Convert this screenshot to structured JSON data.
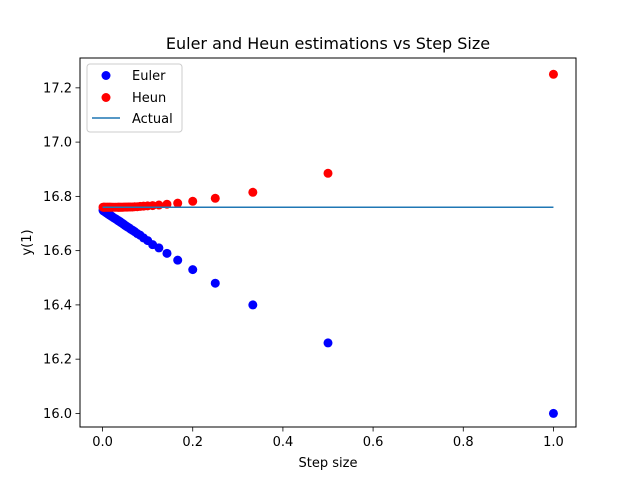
{
  "chart_data": {
    "type": "scatter",
    "title": "Euler and Heun estimations vs Step Size",
    "xlabel": "Step size",
    "ylabel": "y(1)",
    "xlim": [
      -0.05,
      1.05
    ],
    "ylim": [
      15.95,
      17.31
    ],
    "xticks": [
      "0.0",
      "0.2",
      "0.4",
      "0.6",
      "0.8",
      "1.0"
    ],
    "xtick_values": [
      0.0,
      0.2,
      0.4,
      0.6,
      0.8,
      1.0
    ],
    "yticks": [
      "16.0",
      "16.2",
      "16.4",
      "16.6",
      "16.8",
      "17.0",
      "17.2"
    ],
    "ytick_values": [
      16.0,
      16.2,
      16.4,
      16.6,
      16.8,
      17.0,
      17.2
    ],
    "grid": false,
    "legend": {
      "placement": "top-left",
      "entries": [
        "Euler",
        "Heun",
        "Actual"
      ]
    },
    "series": [
      {
        "name": "Euler",
        "kind": "scatter",
        "color": "#0000ff",
        "x": [
          1.0,
          0.5,
          0.3333,
          0.25,
          0.2,
          0.1667,
          0.1429,
          0.125,
          0.1111,
          0.1,
          0.0909,
          0.0833,
          0.0769,
          0.0714,
          0.0667,
          0.0625,
          0.0588,
          0.0556,
          0.0526,
          0.05,
          0.0476,
          0.0455,
          0.0435,
          0.0417,
          0.04,
          0.0385,
          0.037,
          0.0357,
          0.0345,
          0.0333,
          0.0303,
          0.0278,
          0.025,
          0.0222,
          0.02,
          0.0182,
          0.0167,
          0.0154,
          0.0143,
          0.0125,
          0.0111,
          0.01,
          0.008,
          0.0067,
          0.005,
          0.004,
          0.003,
          0.002,
          0.001
        ],
        "y": [
          16.0,
          16.26,
          16.4,
          16.48,
          16.53,
          16.565,
          16.59,
          16.61,
          16.622,
          16.637,
          16.647,
          16.657,
          16.663,
          16.67,
          16.675,
          16.679,
          16.684,
          16.687,
          16.69,
          16.693,
          16.696,
          16.699,
          16.701,
          16.703,
          16.705,
          16.707,
          16.708,
          16.71,
          16.711,
          16.712,
          16.716,
          16.718,
          16.721,
          16.724,
          16.727,
          16.729,
          16.73,
          16.732,
          16.733,
          16.735,
          16.737,
          16.738,
          16.74,
          16.742,
          16.744,
          16.745,
          16.746,
          16.747,
          16.749
        ]
      },
      {
        "name": "Heun",
        "kind": "scatter",
        "color": "#ff0000",
        "x": [
          1.0,
          0.5,
          0.3333,
          0.25,
          0.2,
          0.1667,
          0.1429,
          0.125,
          0.1111,
          0.1,
          0.0909,
          0.0833,
          0.0769,
          0.0714,
          0.0667,
          0.0625,
          0.0588,
          0.0556,
          0.0526,
          0.05,
          0.0476,
          0.0455,
          0.0435,
          0.0417,
          0.04,
          0.0385,
          0.037,
          0.0357,
          0.0345,
          0.0333,
          0.0303,
          0.0278,
          0.025,
          0.0222,
          0.02,
          0.0182,
          0.0167,
          0.0154,
          0.0143,
          0.0125,
          0.0111,
          0.01,
          0.008,
          0.0067,
          0.005,
          0.004,
          0.003,
          0.002,
          0.001
        ],
        "y": [
          17.25,
          16.885,
          16.815,
          16.793,
          16.782,
          16.775,
          16.771,
          16.768,
          16.766,
          16.765,
          16.764,
          16.763,
          16.762,
          16.762,
          16.761,
          16.761,
          16.761,
          16.7605,
          16.7605,
          16.7603,
          16.7602,
          16.7601,
          16.76,
          16.76,
          16.76,
          16.76,
          16.76,
          16.76,
          16.76,
          16.76,
          16.76,
          16.76,
          16.76,
          16.76,
          16.76,
          16.76,
          16.76,
          16.76,
          16.76,
          16.76,
          16.76,
          16.76,
          16.76,
          16.76,
          16.76,
          16.76,
          16.76,
          16.76,
          16.76
        ]
      },
      {
        "name": "Actual",
        "kind": "line",
        "color": "#1f77b4",
        "x": [
          0.0,
          1.0
        ],
        "y": [
          16.76,
          16.76
        ]
      }
    ]
  }
}
